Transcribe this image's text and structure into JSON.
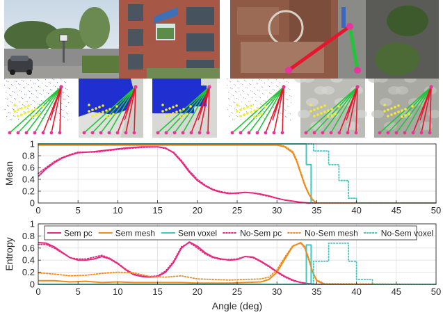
{
  "photos": {
    "street_view_icon": "street-scene",
    "aerial_view_icon": "aerial-scene"
  },
  "chart_data": [
    {
      "type": "line",
      "ylabel": "Mean",
      "xlim": [
        0,
        50
      ],
      "ylim": [
        0,
        1
      ],
      "xticks": [
        "0",
        "5",
        "10",
        "15",
        "20",
        "25",
        "30",
        "35",
        "40",
        "45",
        "50"
      ],
      "yticks": [
        "0",
        "0.2",
        "0.4",
        "0.6",
        "0.8",
        "1"
      ],
      "grid": true,
      "series": [
        {
          "name": "Sem pc",
          "color": "#e6287f",
          "dash": "solid",
          "x": [
            0,
            1,
            2,
            3,
            4,
            5,
            7,
            9,
            11,
            13,
            15,
            16,
            17,
            18,
            19,
            20,
            21,
            22,
            23,
            24,
            25,
            26,
            27,
            28,
            29,
            30,
            31,
            32,
            33,
            34,
            35,
            50
          ],
          "y": [
            0.45,
            0.58,
            0.68,
            0.76,
            0.81,
            0.85,
            0.87,
            0.9,
            0.93,
            0.95,
            0.95,
            0.93,
            0.85,
            0.7,
            0.52,
            0.38,
            0.29,
            0.22,
            0.18,
            0.16,
            0.17,
            0.18,
            0.17,
            0.15,
            0.12,
            0.08,
            0.05,
            0.03,
            0.01,
            0,
            0,
            0
          ]
        },
        {
          "name": "Sem mesh",
          "color": "#f28a1a",
          "dash": "solid",
          "x": [
            0,
            30,
            31,
            32,
            32.5,
            33,
            33.5,
            34,
            34.5,
            35,
            50
          ],
          "y": [
            0.98,
            0.98,
            0.95,
            0.85,
            0.7,
            0.5,
            0.3,
            0.15,
            0.05,
            0,
            0
          ]
        },
        {
          "name": "Sem voxel",
          "color": "#3dc9c0",
          "dash": "solid",
          "x": [
            0,
            33.7,
            33.7,
            34.3,
            34.3,
            50
          ],
          "y": [
            1,
            1,
            0.65,
            0.65,
            0,
            0
          ]
        },
        {
          "name": "No-Sem pc",
          "color": "#e6287f",
          "dash": "dotted",
          "x": [
            0,
            1,
            2,
            3,
            4,
            5,
            7,
            9,
            11,
            13,
            15,
            16,
            17,
            18,
            19,
            20,
            21,
            22,
            23,
            24,
            25,
            26,
            27,
            28,
            29,
            30,
            31,
            32,
            33,
            34,
            35,
            50
          ],
          "y": [
            0.5,
            0.6,
            0.7,
            0.77,
            0.82,
            0.86,
            0.86,
            0.89,
            0.92,
            0.94,
            0.95,
            0.92,
            0.86,
            0.72,
            0.54,
            0.4,
            0.3,
            0.23,
            0.19,
            0.17,
            0.16,
            0.18,
            0.17,
            0.14,
            0.11,
            0.08,
            0.05,
            0.03,
            0.01,
            0,
            0,
            0
          ]
        },
        {
          "name": "No-Sem mesh",
          "color": "#f28a1a",
          "dash": "dotted",
          "x": [
            0,
            30,
            31,
            32,
            32.5,
            33,
            33.5,
            34,
            34.5,
            35,
            50
          ],
          "y": [
            0.99,
            0.99,
            0.96,
            0.87,
            0.72,
            0.52,
            0.32,
            0.16,
            0.06,
            0,
            0
          ]
        },
        {
          "name": "No-Sem voxel",
          "color": "#3dc9c0",
          "dash": "dotted",
          "x": [
            0,
            34.6,
            34.6,
            36.5,
            36.5,
            37.8,
            37.8,
            39.0,
            39.0,
            40.0,
            40.0,
            50
          ],
          "y": [
            1,
            1,
            0.88,
            0.88,
            0.65,
            0.65,
            0.38,
            0.38,
            0.08,
            0.08,
            0,
            0
          ]
        }
      ]
    },
    {
      "type": "line",
      "ylabel": "Entropy",
      "xlabel": "Angle (deg)",
      "xlim": [
        0,
        50
      ],
      "ylim": [
        0,
        1
      ],
      "xticks": [
        "0",
        "5",
        "10",
        "15",
        "20",
        "25",
        "30",
        "35",
        "40",
        "45",
        "50"
      ],
      "yticks": [
        "0",
        "0.2",
        "0.4",
        "0.6",
        "0.8",
        "1"
      ],
      "grid": true,
      "legend": "top",
      "series": [
        {
          "name": "Sem pc",
          "color": "#e6287f",
          "dash": "solid",
          "x": [
            0,
            1,
            2,
            3,
            4,
            5,
            6,
            7,
            8,
            9,
            10,
            11,
            12,
            13,
            14,
            15,
            16,
            17,
            18,
            19,
            20,
            21,
            22,
            23,
            24,
            25,
            26,
            27,
            28,
            29,
            30,
            31,
            32,
            33,
            34,
            35,
            50
          ],
          "y": [
            0.69,
            0.68,
            0.62,
            0.53,
            0.44,
            0.4,
            0.4,
            0.42,
            0.46,
            0.42,
            0.34,
            0.24,
            0.16,
            0.13,
            0.12,
            0.13,
            0.2,
            0.36,
            0.6,
            0.7,
            0.63,
            0.52,
            0.45,
            0.42,
            0.4,
            0.41,
            0.46,
            0.45,
            0.38,
            0.3,
            0.21,
            0.13,
            0.07,
            0.03,
            0.01,
            0,
            0
          ]
        },
        {
          "name": "Sem mesh",
          "color": "#f28a1a",
          "dash": "solid",
          "x": [
            0,
            2,
            4,
            6,
            8,
            10,
            12,
            14,
            16,
            18,
            20,
            22,
            24,
            26,
            28,
            29,
            30,
            31,
            32,
            33,
            33.5,
            34,
            34.5,
            35,
            36,
            50
          ],
          "y": [
            0.06,
            0.06,
            0.04,
            0.05,
            0.03,
            0.04,
            0.03,
            0.03,
            0.03,
            0.03,
            0.02,
            0.02,
            0.02,
            0.03,
            0.04,
            0.08,
            0.2,
            0.42,
            0.63,
            0.69,
            0.62,
            0.42,
            0.2,
            0.06,
            0,
            0
          ]
        },
        {
          "name": "Sem voxel",
          "color": "#3dc9c0",
          "dash": "solid",
          "x": [
            0,
            33.7,
            33.7,
            34.3,
            34.3,
            50
          ],
          "y": [
            0,
            0,
            0.65,
            0.65,
            0,
            0
          ]
        },
        {
          "name": "No-Sem pc",
          "color": "#e6287f",
          "dash": "dotted",
          "x": [
            0,
            1,
            2,
            3,
            4,
            5,
            6,
            7,
            8,
            9,
            10,
            11,
            12,
            13,
            14,
            15,
            16,
            17,
            18,
            19,
            20,
            21,
            22,
            23,
            24,
            25,
            26,
            27,
            28,
            29,
            30,
            31,
            32,
            33,
            34,
            35,
            50
          ],
          "y": [
            0.66,
            0.66,
            0.6,
            0.52,
            0.44,
            0.42,
            0.42,
            0.45,
            0.48,
            0.43,
            0.35,
            0.25,
            0.17,
            0.14,
            0.13,
            0.14,
            0.22,
            0.38,
            0.62,
            0.69,
            0.6,
            0.5,
            0.44,
            0.41,
            0.41,
            0.42,
            0.46,
            0.44,
            0.37,
            0.29,
            0.2,
            0.12,
            0.06,
            0.03,
            0.01,
            0,
            0
          ]
        },
        {
          "name": "No-Sem mesh",
          "color": "#f28a1a",
          "dash": "dotted",
          "x": [
            0,
            2,
            4,
            6,
            8,
            10,
            12,
            14,
            16,
            18,
            20,
            22,
            24,
            26,
            28,
            29,
            30,
            31,
            32,
            33,
            33.5,
            34,
            34.5,
            35,
            36,
            50
          ],
          "y": [
            0.19,
            0.17,
            0.14,
            0.15,
            0.18,
            0.2,
            0.19,
            0.13,
            0.12,
            0.14,
            0.09,
            0.08,
            0.07,
            0.08,
            0.09,
            0.12,
            0.24,
            0.45,
            0.64,
            0.68,
            0.6,
            0.4,
            0.2,
            0.07,
            0.01,
            0
          ]
        },
        {
          "name": "No-Sem voxel",
          "color": "#3dc9c0",
          "dash": "dotted",
          "x": [
            0,
            34.6,
            34.6,
            36.5,
            36.5,
            37.8,
            37.8,
            39.0,
            39.0,
            40.0,
            40.0,
            42.0,
            42.0,
            50
          ],
          "y": [
            0,
            0,
            0.38,
            0.38,
            0.68,
            0.68,
            0.68,
            0.68,
            0.38,
            0.38,
            0.08,
            0.08,
            0,
            0
          ]
        }
      ]
    }
  ]
}
